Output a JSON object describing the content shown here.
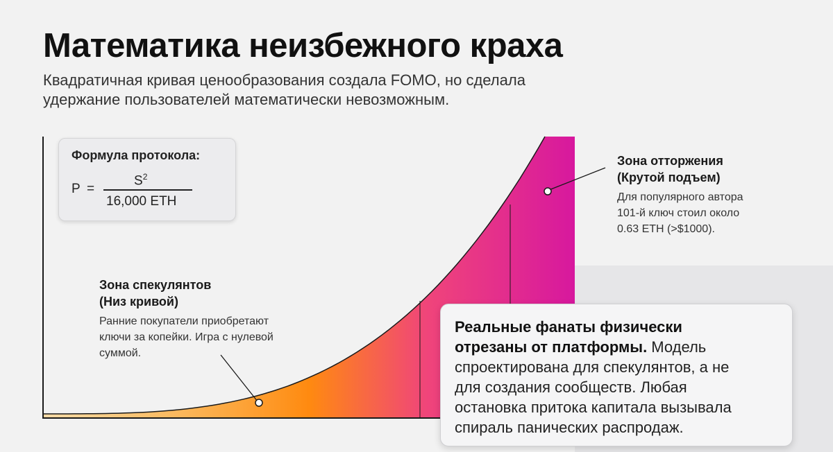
{
  "title": "Математика неизбежного краха",
  "subtitle_line1": "Квадратичная кривая ценообразования создала FOMO, но сделала",
  "subtitle_line2": "удержание пользователей математически невозможным.",
  "formula": {
    "label": "Формула протокола:",
    "lhs": "P",
    "eq": "=",
    "numerator": "S",
    "exponent": "2",
    "denominator": "16,000 ETH"
  },
  "zone_speculators": {
    "title_line1": "Зона спекулянтов",
    "title_line2": "(Низ кривой)",
    "text_line1": "Ранние покупатели приобретают",
    "text_line2": "ключи за копейки. Игра с нулевой",
    "text_line3": "суммой."
  },
  "zone_rejection": {
    "title_line1": "Зона отторжения",
    "title_line2": "(Крутой подъем)",
    "text_line1": "Для популярного автора",
    "text_line2": "101-й ключ стоил около",
    "text_line3": "0.63 ETH (>$1000)."
  },
  "fans_box": {
    "bold_line1": "Реальные фанаты физически",
    "bold_line2": "отрезаны от платформы.",
    "text_1": " Модель",
    "text_line3": "спроектирована для спекулянтов, а не",
    "text_line4": "для создания сообществ. Любая",
    "text_line5": "остановка притока капитала вызывала",
    "text_line6": "спираль панических распродаж."
  },
  "colors": {
    "gradient_start": "#ff9a0e",
    "gradient_mid": "#f0457a",
    "gradient_end": "#d7189e",
    "axis": "#1a1a1a"
  }
}
